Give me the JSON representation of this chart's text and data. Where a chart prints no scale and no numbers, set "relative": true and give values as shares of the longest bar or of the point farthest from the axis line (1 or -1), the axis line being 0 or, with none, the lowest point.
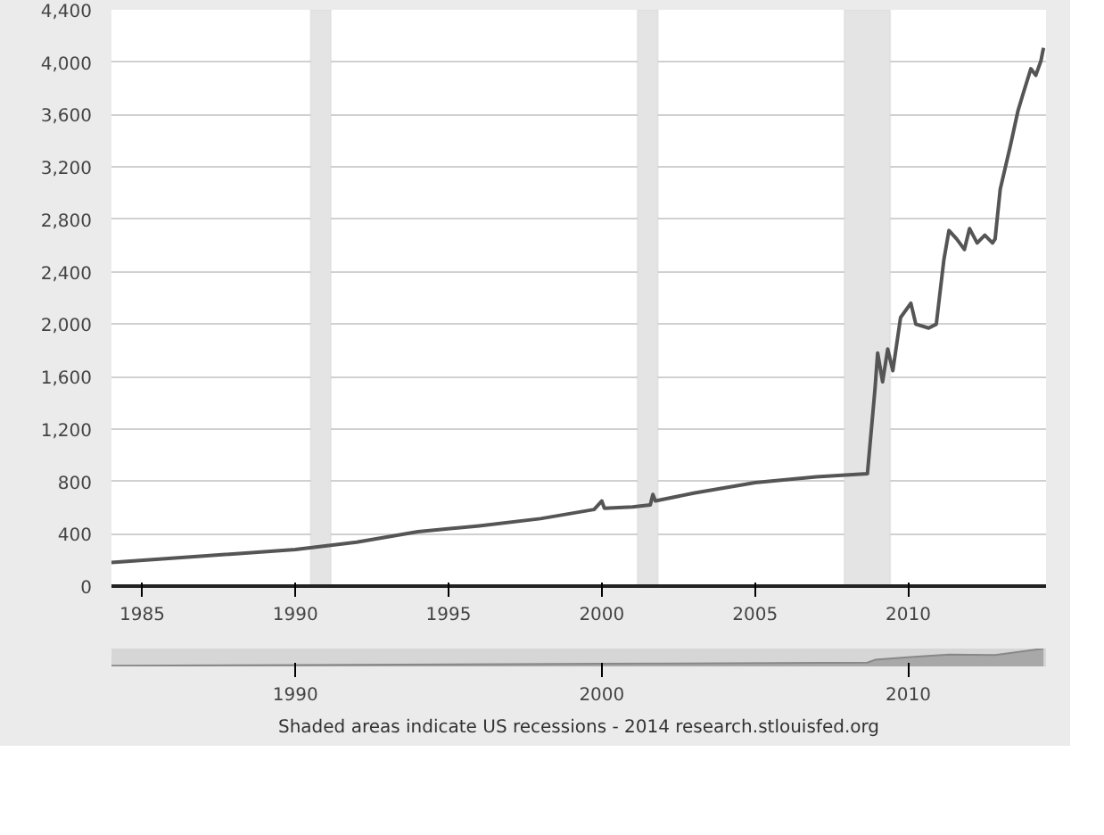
{
  "chart_data": [
    {
      "type": "line",
      "x": [
        "1984-01",
        "1987-01",
        "1990-01",
        "1992-01",
        "1994-01",
        "1996-01",
        "1998-01",
        "1999-10",
        "2000-01",
        "2000-02",
        "2001-01",
        "2001-08",
        "2001-09",
        "2001-10",
        "2003-01",
        "2005-01",
        "2007-01",
        "2008-09",
        "2008-12",
        "2009-01",
        "2009-03",
        "2009-05",
        "2009-07",
        "2009-10",
        "2010-02",
        "2010-04",
        "2010-09",
        "2010-12",
        "2011-03",
        "2011-05",
        "2011-08",
        "2011-11",
        "2012-01",
        "2012-04",
        "2012-07",
        "2012-10",
        "2012-11",
        "2013-01",
        "2013-05",
        "2013-08",
        "2013-10",
        "2014-01",
        "2014-03",
        "2014-05",
        "2014-06"
      ],
      "series": [
        {
          "color": "#555555",
          "values": [
            180,
            230,
            280,
            335,
            415,
            460,
            515,
            585,
            650,
            595,
            605,
            620,
            700,
            650,
            710,
            790,
            835,
            858,
            1510,
            1780,
            1560,
            1810,
            1645,
            2050,
            2160,
            2000,
            1970,
            2000,
            2490,
            2715,
            2650,
            2570,
            2730,
            2620,
            2680,
            2620,
            2650,
            3030,
            3360,
            3630,
            3760,
            3950,
            3900,
            4010,
            4110
          ]
        }
      ],
      "xlim": [
        "1984-01",
        "2014-07"
      ],
      "xticks": [
        {
          "value": "1985",
          "label": "1985"
        },
        {
          "value": "1990",
          "label": "1990"
        },
        {
          "value": "1995",
          "label": "1995"
        },
        {
          "value": "2000",
          "label": "2000"
        },
        {
          "value": "2005",
          "label": "2005"
        },
        {
          "value": "2010",
          "label": "2010"
        }
      ],
      "ylim": [
        0,
        4400
      ],
      "yticks": [
        0,
        400,
        800,
        {
          "value": 1200,
          "label": "1,200"
        },
        {
          "value": 1600,
          "label": "1,600"
        },
        {
          "value": 2000,
          "label": "2,000"
        },
        {
          "value": 2400,
          "label": "2,400"
        },
        {
          "value": 2800,
          "label": "2,800"
        },
        {
          "value": 3200,
          "label": "3,200"
        },
        {
          "value": 3600,
          "label": "3,600"
        },
        {
          "value": 4000,
          "label": "4,000"
        },
        {
          "value": 4400,
          "label": "4,400"
        }
      ],
      "grid": "y",
      "bands": [
        {
          "axis": "x",
          "from": "1990-07",
          "to": "1991-03",
          "label": null,
          "color": "#e4e4e4"
        },
        {
          "axis": "x",
          "from": "2001-03",
          "to": "2001-11",
          "label": null,
          "color": "#e4e4e4"
        },
        {
          "axis": "x",
          "from": "2007-12",
          "to": "2009-06",
          "label": null,
          "color": "#e4e4e4"
        }
      ],
      "annotations": [
        "Shaded areas indicate US recessions - 2014 research.stlouisfed.org"
      ]
    },
    {
      "type": "area",
      "relative": true,
      "x": [
        "1984-01",
        "1990-01",
        "2000-01",
        "2008-09",
        "2008-12",
        "2010-02",
        "2011-05",
        "2012-11",
        "2014-06"
      ],
      "series": [
        {
          "color": "#a8a8a8",
          "values": [
            0.04,
            0.07,
            0.15,
            0.21,
            0.37,
            0.52,
            0.66,
            0.64,
            1
          ]
        }
      ],
      "xlim": [
        "1984-01",
        "2014-07"
      ],
      "xticks": [
        {
          "value": "1990",
          "label": "1990"
        },
        {
          "value": "2000",
          "label": "2000"
        },
        {
          "value": "2010",
          "label": "2010"
        }
      ]
    }
  ]
}
